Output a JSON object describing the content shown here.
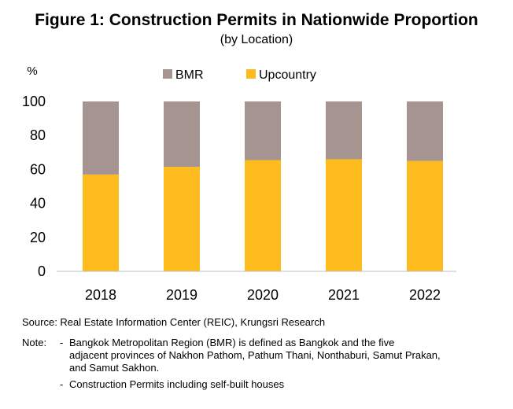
{
  "title": "Figure 1: Construction  Permits in Nationwide Proportion",
  "subtitle": "(by Location)",
  "colors": {
    "bmr": "#A69491",
    "upcountry": "#FDBB1E"
  },
  "chart_data": {
    "type": "bar",
    "stacked": true,
    "categories": [
      "2018",
      "2019",
      "2020",
      "2021",
      "2022"
    ],
    "series": [
      {
        "name": "Upcountry",
        "values": [
          57,
          61.5,
          65.5,
          66,
          65
        ]
      },
      {
        "name": "BMR",
        "values": [
          43,
          38.5,
          34.5,
          34,
          35
        ]
      }
    ],
    "ylabel": "%",
    "ylim": [
      0,
      100
    ],
    "yticks": [
      "0",
      "20",
      "40",
      "60",
      "80",
      "100"
    ],
    "grid": false,
    "legend_position": "top"
  },
  "footer": {
    "source": "Source: Real Estate Information Center (REIC), Krungsri Research",
    "note_label": "Note:",
    "note_lines": [
      "Bangkok Metropolitan Region (BMR) is defined as Bangkok and the five",
      "adjacent provinces of Nakhon Pathom, Pathum Thani, Nonthaburi, Samut Prakan,",
      "and Samut Sakhon.",
      "Construction Permits including self-built houses"
    ],
    "dash": "-"
  }
}
